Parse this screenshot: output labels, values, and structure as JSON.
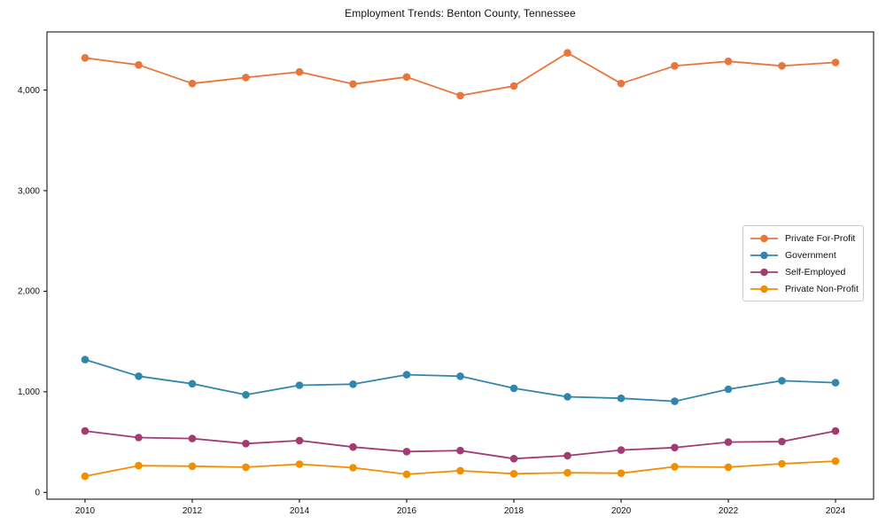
{
  "chart_data": {
    "type": "line",
    "title": "Employment Trends: Benton County, Tennessee",
    "xlabel": "",
    "ylabel": "",
    "x": [
      2010,
      2011,
      2012,
      2013,
      2014,
      2015,
      2016,
      2017,
      2018,
      2019,
      2020,
      2021,
      2022,
      2023,
      2024
    ],
    "x_ticks": [
      2010,
      2012,
      2014,
      2016,
      2018,
      2020,
      2022,
      2024
    ],
    "x_tick_labels": [
      "2010",
      "2012",
      "2014",
      "2016",
      "2018",
      "2020",
      "2022",
      "2024"
    ],
    "y_ticks": [
      0,
      1000,
      2000,
      3000,
      4000
    ],
    "y_tick_labels": [
      "0",
      "1,000",
      "2,000",
      "3,000",
      "4,000"
    ],
    "xlim": [
      2009.29,
      2024.71
    ],
    "ylim": [
      -68,
      4578
    ],
    "grid": false,
    "legend_position": "center-right",
    "series": [
      {
        "name": "Private For-Profit",
        "color": "#E8763B",
        "values": [
          4320,
          4250,
          4065,
          4125,
          4180,
          4060,
          4130,
          3945,
          4040,
          4370,
          4065,
          4240,
          4285,
          4240,
          4275
        ]
      },
      {
        "name": "Government",
        "color": "#3186AD",
        "values": [
          1320,
          1155,
          1080,
          970,
          1065,
          1075,
          1170,
          1155,
          1035,
          950,
          935,
          905,
          1025,
          1110,
          1090
        ]
      },
      {
        "name": "Self-Employed",
        "color": "#A23B72",
        "values": [
          610,
          545,
          535,
          485,
          515,
          450,
          405,
          415,
          335,
          365,
          420,
          445,
          500,
          505,
          610
        ]
      },
      {
        "name": "Private Non-Profit",
        "color": "#F18F01",
        "values": [
          160,
          265,
          260,
          250,
          280,
          245,
          180,
          215,
          185,
          195,
          190,
          255,
          250,
          285,
          310
        ]
      }
    ]
  }
}
